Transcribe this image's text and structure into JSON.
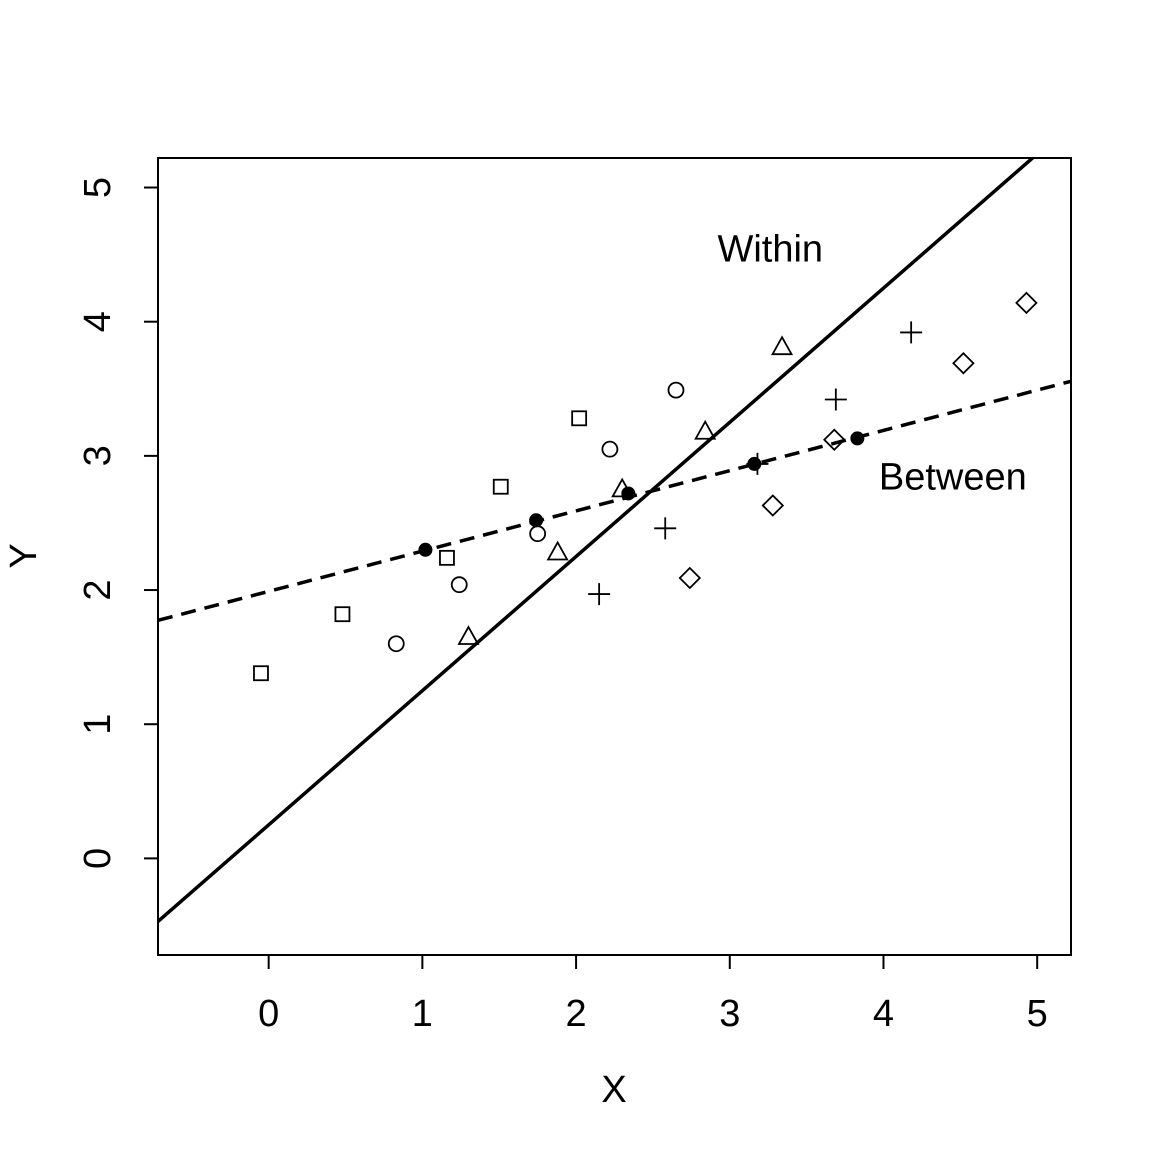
{
  "chart_data": {
    "type": "scatter",
    "title": "",
    "xlabel": "X",
    "ylabel": "Y",
    "xlim": [
      -0.72,
      5.22
    ],
    "ylim": [
      -0.72,
      5.22
    ],
    "xticks": [
      0,
      1,
      2,
      3,
      4,
      5
    ],
    "yticks": [
      0,
      1,
      2,
      3,
      4,
      5
    ],
    "grid": false,
    "series": [
      {
        "marker": "square",
        "points": [
          [
            -0.05,
            1.38
          ],
          [
            0.48,
            1.82
          ],
          [
            1.16,
            2.24
          ],
          [
            1.51,
            2.77
          ],
          [
            2.02,
            3.28
          ]
        ]
      },
      {
        "marker": "circle",
        "points": [
          [
            0.83,
            1.6
          ],
          [
            1.24,
            2.04
          ],
          [
            1.75,
            2.42
          ],
          [
            2.22,
            3.05
          ],
          [
            2.65,
            3.49
          ]
        ]
      },
      {
        "marker": "triangle",
        "points": [
          [
            1.3,
            1.65
          ],
          [
            1.88,
            2.28
          ],
          [
            2.3,
            2.75
          ],
          [
            2.84,
            3.18
          ],
          [
            3.34,
            3.81
          ]
        ]
      },
      {
        "marker": "plus",
        "points": [
          [
            2.15,
            1.97
          ],
          [
            2.58,
            2.46
          ],
          [
            3.18,
            2.94
          ],
          [
            3.69,
            3.42
          ],
          [
            4.18,
            3.92
          ]
        ]
      },
      {
        "marker": "diamond",
        "points": [
          [
            2.74,
            2.09
          ],
          [
            3.28,
            2.63
          ],
          [
            3.68,
            3.12
          ],
          [
            4.52,
            3.69
          ],
          [
            4.93,
            4.14
          ]
        ]
      },
      {
        "marker": "filled-circle",
        "points": [
          [
            1.02,
            2.3
          ],
          [
            1.74,
            2.52
          ],
          [
            2.34,
            2.72
          ],
          [
            3.16,
            2.94
          ],
          [
            3.83,
            3.13
          ]
        ]
      }
    ],
    "lines": [
      {
        "label": "Within",
        "style": "solid",
        "intercept": 0.25,
        "slope": 1.0
      },
      {
        "label": "Between",
        "style": "dashed",
        "intercept": 1.99,
        "slope": 0.3
      }
    ],
    "annotations": [
      {
        "text": "Within",
        "x": 2.92,
        "y": 4.45
      },
      {
        "text": "Between",
        "x": 3.97,
        "y": 2.75
      }
    ]
  }
}
